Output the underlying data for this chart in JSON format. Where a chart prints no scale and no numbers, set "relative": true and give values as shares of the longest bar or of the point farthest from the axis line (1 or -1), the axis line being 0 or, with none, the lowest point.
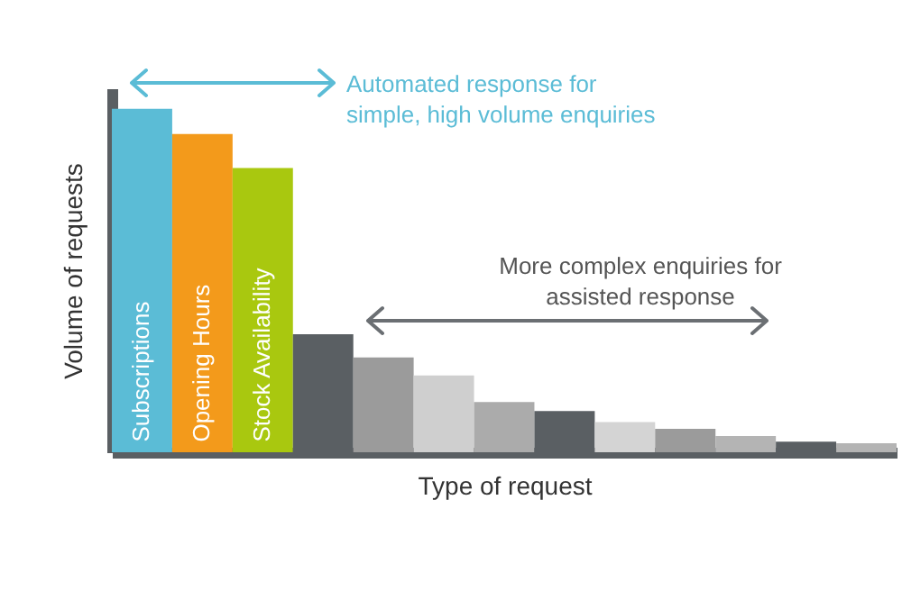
{
  "chart_data": {
    "type": "bar",
    "relative": true,
    "xlabel": "Type of request",
    "ylabel": "Volume of requests",
    "grid": false,
    "categories": [
      "Subscriptions",
      "Opening Hours",
      "Stock Availability",
      null,
      null,
      null,
      null,
      null,
      null,
      null,
      null,
      null,
      null
    ],
    "values": [
      1,
      0.927,
      0.828,
      0.344,
      0.276,
      0.224,
      0.146,
      0.12,
      0.088,
      0.068,
      0.047,
      0.031,
      0.026
    ],
    "colors": [
      "#5bbcd6",
      "#f39a1b",
      "#a9c80f",
      "#5a5f63",
      "#9b9b9b",
      "#cfcfcf",
      "#ababab",
      "#5a5f63",
      "#d4d4d4",
      "#9b9b9b",
      "#b4b4b4",
      "#5a5f63",
      "#b4b4b4"
    ],
    "annotations": [
      "Automated response for\nsimple, high volume enquiries",
      "More complex enquiries for\nassisted response"
    ]
  }
}
